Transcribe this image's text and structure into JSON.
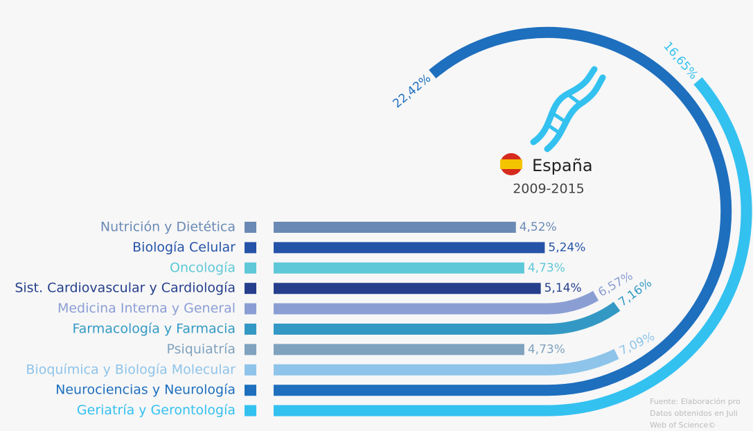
{
  "chart_data": {
    "type": "racetrack-bar",
    "title": "España",
    "subtitle": "2009-2015",
    "categories": [
      "Nutrición y Dietética",
      "Biología Celular",
      "Oncología",
      "Sist. Cardiovascular y Cardiología",
      "Medicina Interna y General",
      "Farmacología y Farmacia",
      "Psiquiatría",
      "Bioquímica y Biología Molecular",
      "Neurociencias y Neurología",
      "Geriatría y Gerontología"
    ],
    "values": [
      4.52,
      5.24,
      4.73,
      5.14,
      6.57,
      7.16,
      4.73,
      7.09,
      22.42,
      16.65
    ],
    "value_labels": [
      "4,52%",
      "5,24%",
      "4,73%",
      "5,14%",
      "6,57%",
      "7,16%",
      "4,73%",
      "7,09%",
      "22,42%",
      "16,65%"
    ],
    "colors": [
      "#6a8ab5",
      "#2553a8",
      "#5ec8d8",
      "#253f8c",
      "#8b9ed4",
      "#3399c4",
      "#7fa2be",
      "#8ec4ea",
      "#1e6fbe",
      "#33c1f0"
    ],
    "source": [
      "Fuente: Elaboración pro",
      "Datos obtenidos en Juli",
      "Web of Science©"
    ]
  }
}
